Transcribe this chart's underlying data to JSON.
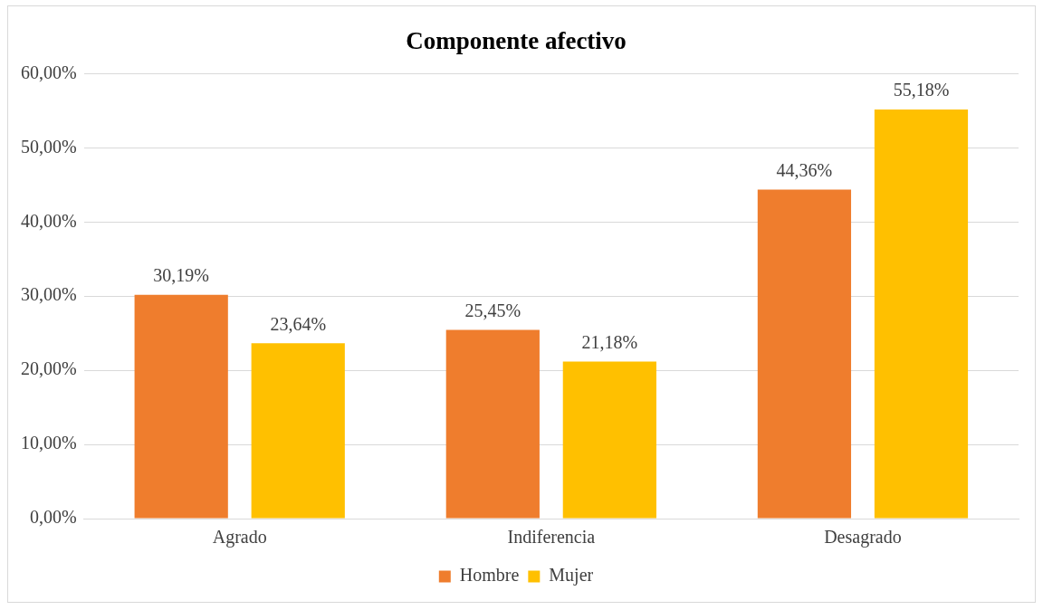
{
  "chart_data": {
    "type": "bar",
    "title": "Componente afectivo",
    "categories": [
      "Agrado",
      "Indiferencia",
      "Desagrado"
    ],
    "series": [
      {
        "name": "Hombre",
        "color": "#ef7d2d",
        "values": [
          30.19,
          25.45,
          44.36
        ],
        "value_labels": [
          "30,19%",
          "25,45%",
          "44,36%"
        ]
      },
      {
        "name": "Mujer",
        "color": "#ffc000",
        "values": [
          23.64,
          21.18,
          55.18
        ],
        "value_labels": [
          "23,64%",
          "21,18%",
          "55,18%"
        ]
      }
    ],
    "ylim": [
      0,
      60
    ],
    "yticks": [
      {
        "value": 0,
        "label": "0,00%"
      },
      {
        "value": 10,
        "label": "10,00%"
      },
      {
        "value": 20,
        "label": "20,00%"
      },
      {
        "value": 30,
        "label": "30,00%"
      },
      {
        "value": 40,
        "label": "40,00%"
      },
      {
        "value": 50,
        "label": "50,00%"
      },
      {
        "value": 60,
        "label": "60,00%"
      }
    ],
    "grid": "y",
    "legend": "bottom"
  }
}
